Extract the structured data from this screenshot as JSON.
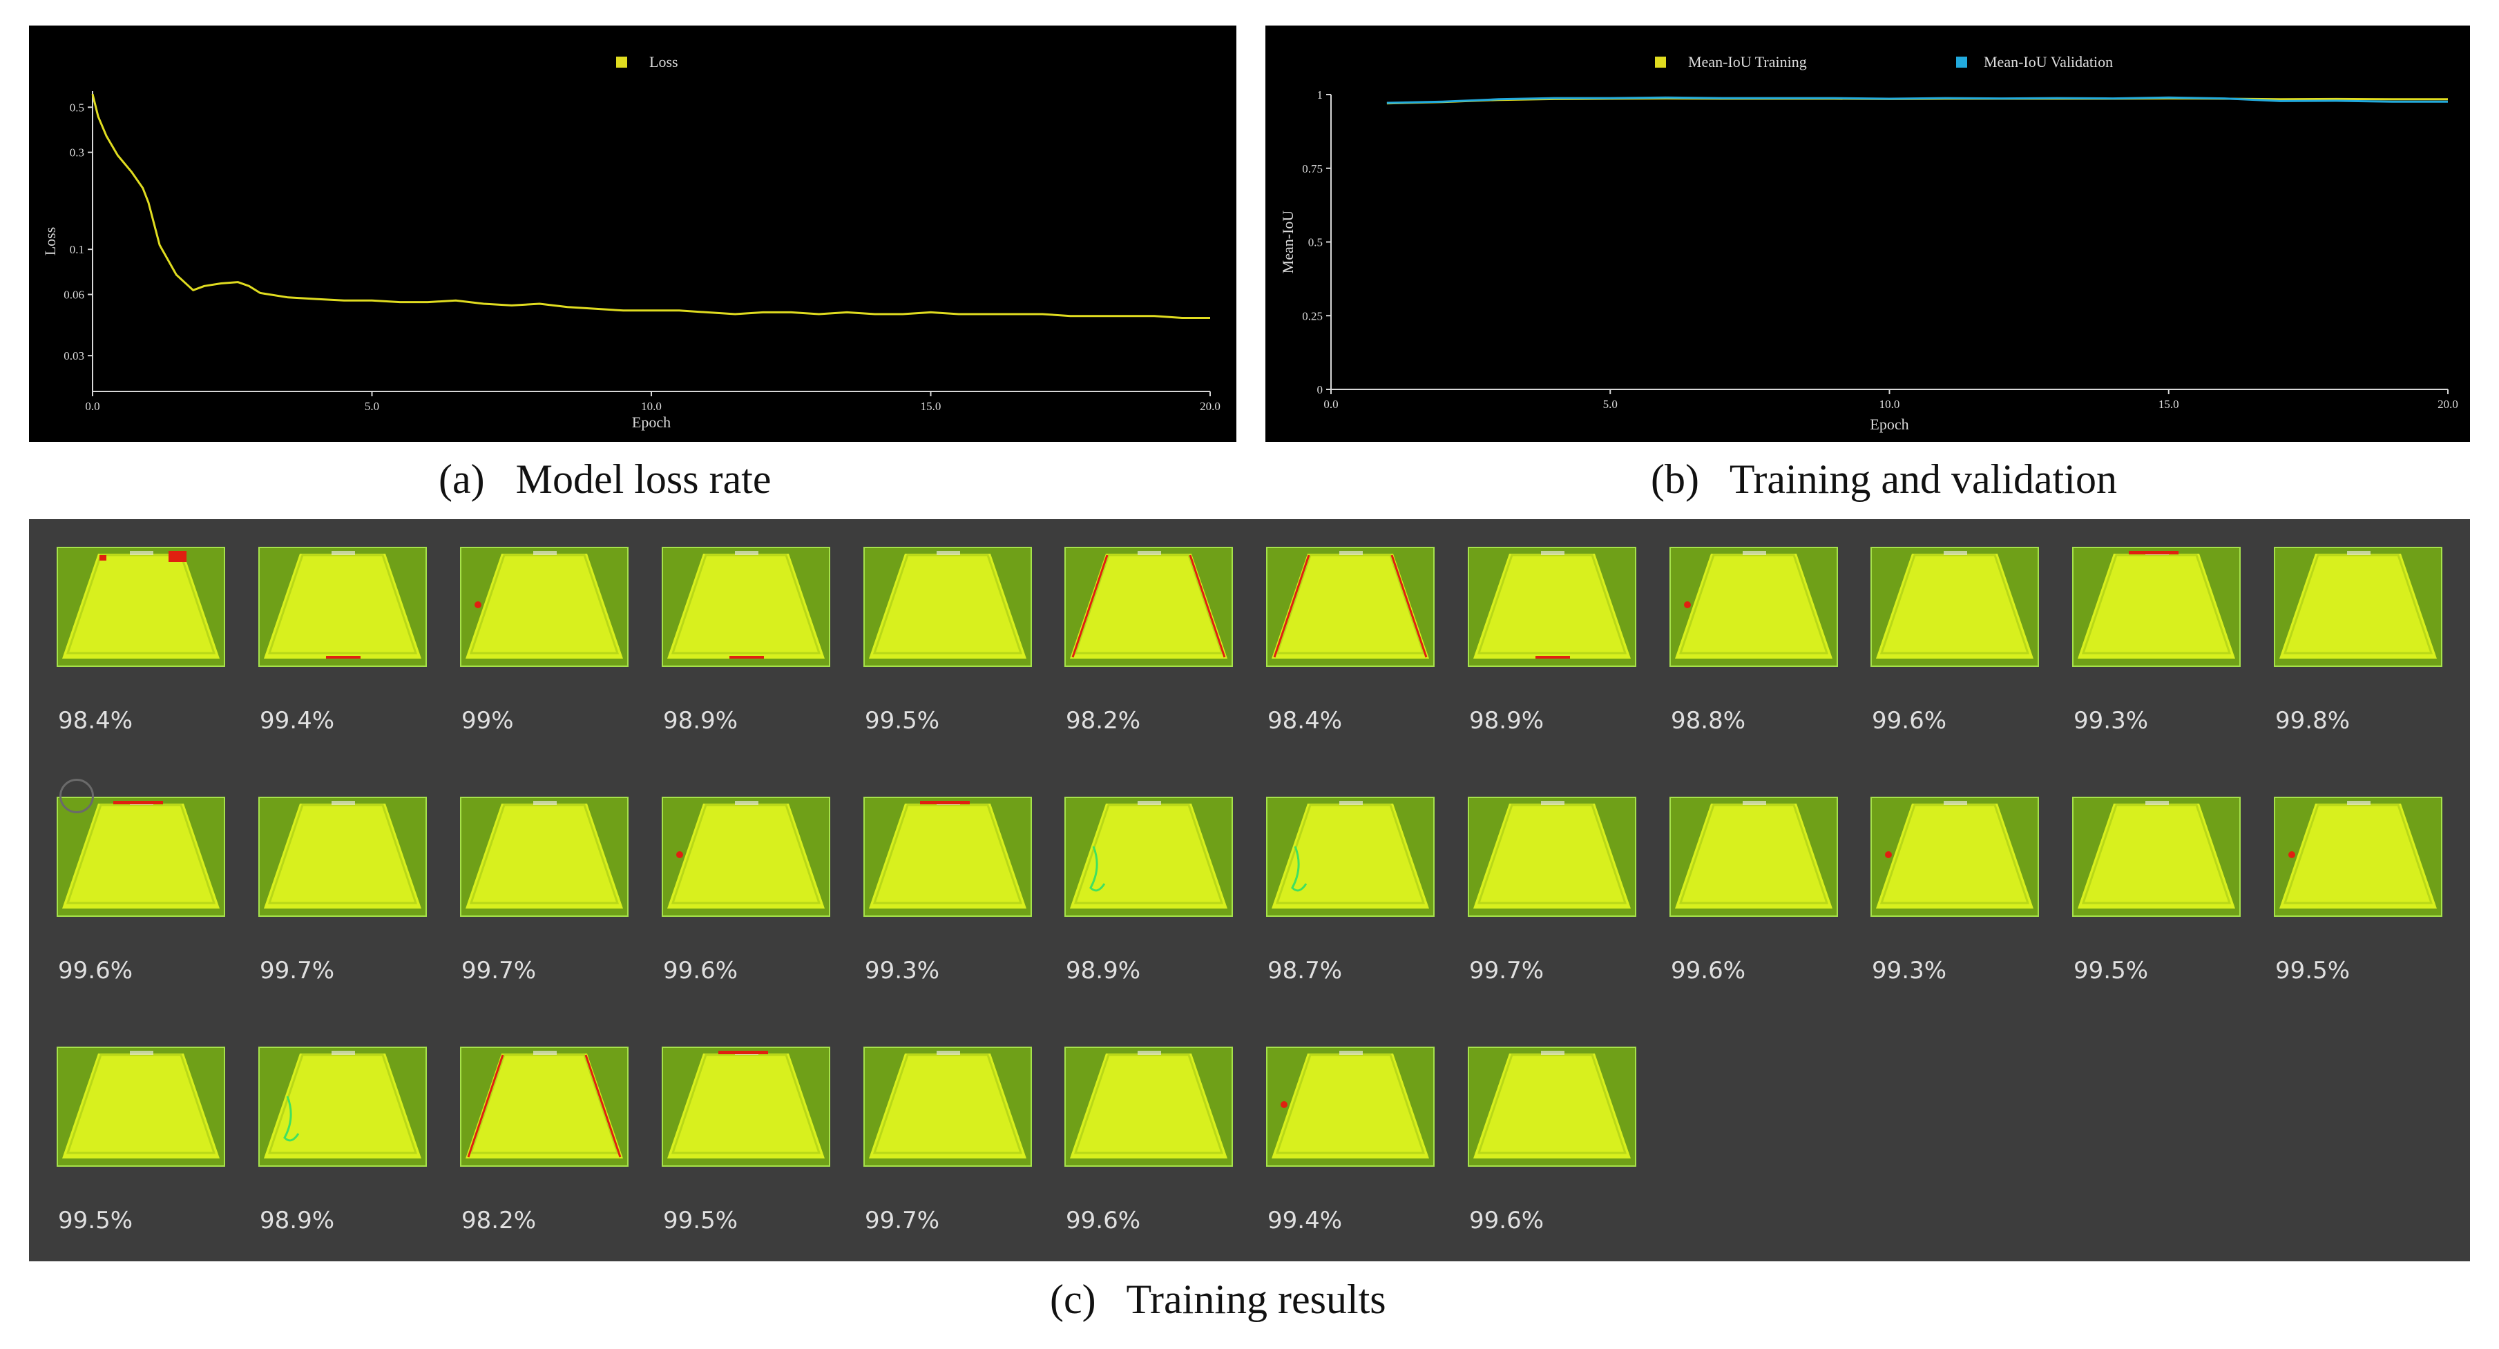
{
  "captions": {
    "a": "(a)   Model loss rate",
    "b": "(b)   Training and validation",
    "c": "(c)   Training results"
  },
  "colors": {
    "loss_line": "#e0dc20",
    "train_line": "#e0dc20",
    "val_line": "#22aadd",
    "thumb_fill": "#d8f01e",
    "thumb_bg": "#6fa018",
    "error_red": "#e02010"
  },
  "chart_data": [
    {
      "type": "line",
      "title": "",
      "legend": [
        "Loss"
      ],
      "xlabel": "Epoch",
      "ylabel": "Loss",
      "yscale": "log",
      "xlim": [
        0,
        20
      ],
      "ylim": [
        0.02,
        0.6
      ],
      "xticks": [
        "0.0",
        "5.0",
        "10.0",
        "15.0",
        "20.0"
      ],
      "yticks": [
        "0.5",
        "0.3",
        "0.1",
        "0.06",
        "0.03"
      ],
      "series": [
        {
          "name": "Loss",
          "x": [
            0.0,
            0.1,
            0.25,
            0.45,
            0.7,
            0.9,
            1.0,
            1.2,
            1.5,
            1.8,
            2.0,
            2.3,
            2.6,
            2.8,
            3.0,
            3.5,
            4.0,
            4.5,
            5.0,
            5.5,
            6.0,
            6.5,
            7.0,
            7.5,
            8.0,
            8.5,
            9.0,
            9.5,
            10.0,
            10.5,
            11.0,
            11.5,
            12.0,
            12.5,
            13.0,
            13.5,
            14.0,
            14.5,
            15.0,
            15.5,
            16.0,
            16.5,
            17.0,
            17.5,
            18.0,
            18.5,
            19.0,
            19.5,
            20.0
          ],
          "values": [
            0.58,
            0.45,
            0.36,
            0.29,
            0.24,
            0.2,
            0.17,
            0.105,
            0.075,
            0.063,
            0.066,
            0.068,
            0.069,
            0.066,
            0.061,
            0.058,
            0.057,
            0.056,
            0.056,
            0.055,
            0.055,
            0.056,
            0.054,
            0.053,
            0.054,
            0.052,
            0.051,
            0.05,
            0.05,
            0.05,
            0.049,
            0.048,
            0.049,
            0.049,
            0.048,
            0.049,
            0.048,
            0.048,
            0.049,
            0.048,
            0.048,
            0.048,
            0.048,
            0.047,
            0.047,
            0.047,
            0.047,
            0.046,
            0.046
          ]
        }
      ]
    },
    {
      "type": "line",
      "title": "",
      "legend": [
        "Mean-IoU Training",
        "Mean-IoU Validation"
      ],
      "xlabel": "Epoch",
      "ylabel": "Mean-IoU",
      "xlim": [
        0,
        20
      ],
      "ylim": [
        0,
        1
      ],
      "xticks": [
        "0.0",
        "5.0",
        "10.0",
        "15.0",
        "20.0"
      ],
      "yticks": [
        "1",
        "0.75",
        "0.5",
        "0.25",
        "0"
      ],
      "series": [
        {
          "name": "Mean-IoU Training",
          "x": [
            1,
            2,
            3,
            4,
            5,
            6,
            7,
            8,
            9,
            10,
            11,
            12,
            13,
            14,
            15,
            16,
            17,
            18,
            19,
            20
          ],
          "values": [
            0.97,
            0.975,
            0.982,
            0.985,
            0.986,
            0.987,
            0.986,
            0.986,
            0.986,
            0.985,
            0.986,
            0.986,
            0.986,
            0.986,
            0.987,
            0.986,
            0.984,
            0.985,
            0.984,
            0.984
          ]
        },
        {
          "name": "Mean-IoU Validation",
          "x": [
            1,
            2,
            3,
            4,
            5,
            6,
            7,
            8,
            9,
            10,
            11,
            12,
            13,
            14,
            15,
            16,
            17,
            18,
            19,
            20
          ],
          "values": [
            0.972,
            0.976,
            0.984,
            0.988,
            0.988,
            0.99,
            0.988,
            0.988,
            0.988,
            0.986,
            0.988,
            0.987,
            0.988,
            0.987,
            0.99,
            0.987,
            0.978,
            0.979,
            0.976,
            0.976
          ]
        }
      ]
    }
  ],
  "results": {
    "items": [
      {
        "pct": "98.4%",
        "marks": "r2"
      },
      {
        "pct": "99.4%",
        "marks": "b"
      },
      {
        "pct": "99%",
        "marks": "l"
      },
      {
        "pct": "98.9%",
        "marks": "b"
      },
      {
        "pct": "99.5%",
        "marks": ""
      },
      {
        "pct": "98.2%",
        "marks": "e"
      },
      {
        "pct": "98.4%",
        "marks": "e"
      },
      {
        "pct": "98.9%",
        "marks": "b"
      },
      {
        "pct": "98.8%",
        "marks": "l"
      },
      {
        "pct": "99.6%",
        "marks": ""
      },
      {
        "pct": "99.3%",
        "marks": "t"
      },
      {
        "pct": "99.8%",
        "marks": ""
      },
      {
        "pct": "99.6%",
        "marks": "t"
      },
      {
        "pct": "99.7%",
        "marks": ""
      },
      {
        "pct": "99.7%",
        "marks": ""
      },
      {
        "pct": "99.6%",
        "marks": "l"
      },
      {
        "pct": "99.3%",
        "marks": "t"
      },
      {
        "pct": "98.9%",
        "marks": "g"
      },
      {
        "pct": "98.7%",
        "marks": "g"
      },
      {
        "pct": "99.7%",
        "marks": ""
      },
      {
        "pct": "99.6%",
        "marks": ""
      },
      {
        "pct": "99.3%",
        "marks": "l"
      },
      {
        "pct": "99.5%",
        "marks": ""
      },
      {
        "pct": "99.5%",
        "marks": "l"
      },
      {
        "pct": "99.5%",
        "marks": ""
      },
      {
        "pct": "98.9%",
        "marks": "g"
      },
      {
        "pct": "98.2%",
        "marks": "e"
      },
      {
        "pct": "99.5%",
        "marks": "t"
      },
      {
        "pct": "99.7%",
        "marks": ""
      },
      {
        "pct": "99.6%",
        "marks": ""
      },
      {
        "pct": "99.4%",
        "marks": "l"
      },
      {
        "pct": "99.6%",
        "marks": ""
      }
    ]
  }
}
